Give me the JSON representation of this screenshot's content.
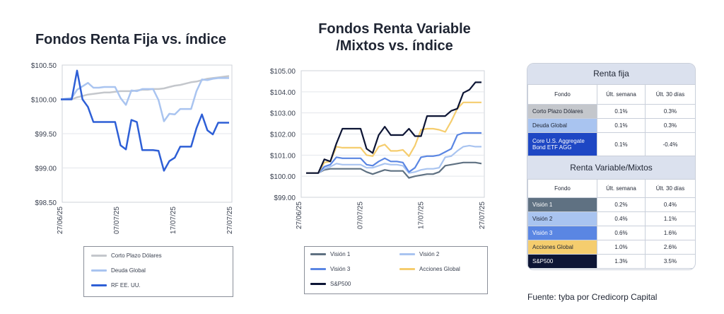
{
  "chart_data": [
    {
      "type": "line",
      "title": "Fondos Renta Fija vs. índice",
      "x_ticks": [
        "27/06/25",
        "07/07/25",
        "17/07/25",
        "27/07/25"
      ],
      "y_ticks": [
        "$100.50",
        "$100.00",
        "$99.50",
        "$99.00",
        "$98.50"
      ],
      "ylim": [
        98.5,
        100.5
      ],
      "series": [
        {
          "name": "Corto Plazo Dólares",
          "color": "#c4c7cc",
          "values": [
            100.0,
            100.0,
            100.0,
            100.03,
            100.05,
            100.07,
            100.08,
            100.09,
            100.1,
            100.1,
            100.11,
            100.12,
            100.12,
            100.12,
            100.13,
            100.14,
            100.14,
            100.15,
            100.15,
            100.16,
            100.18,
            100.2,
            100.21,
            100.23,
            100.25,
            100.26,
            100.28,
            100.3,
            100.31,
            100.32,
            100.33,
            100.34
          ]
        },
        {
          "name": "Deuda Global",
          "color": "#a9c4f0",
          "values": [
            100.0,
            100.01,
            100.02,
            100.14,
            100.19,
            100.24,
            100.17,
            100.17,
            100.18,
            100.18,
            100.18,
            100.02,
            99.92,
            100.13,
            100.12,
            100.15,
            100.15,
            100.15,
            99.99,
            99.68,
            99.79,
            99.78,
            99.86,
            99.86,
            99.86,
            100.12,
            100.29,
            100.28,
            100.3,
            100.31,
            100.31,
            100.31
          ]
        },
        {
          "name": "RF EE. UU.",
          "color": "#2e5fd6",
          "values": [
            100.0,
            100.0,
            100.0,
            100.42,
            100.0,
            99.89,
            99.67,
            99.67,
            99.67,
            99.67,
            99.67,
            99.33,
            99.27,
            99.7,
            99.67,
            99.26,
            99.26,
            99.26,
            99.25,
            98.96,
            99.1,
            99.15,
            99.31,
            99.31,
            99.31,
            99.58,
            99.78,
            99.55,
            99.49,
            99.66,
            99.66,
            99.66
          ]
        }
      ]
    },
    {
      "type": "line",
      "title": [
        "Fondos Renta Variable",
        "/Mixtos vs. índice"
      ],
      "x_ticks": [
        "27/06/25",
        "07/07/25",
        "17/07/25",
        "27/07/25"
      ],
      "y_ticks": [
        "$105.00",
        "$104.00",
        "$103.00",
        "$102.00",
        "$101.00",
        "$100.00",
        "$99.00"
      ],
      "ylim": [
        99.0,
        105.0
      ],
      "series": [
        {
          "name": "Visión 1",
          "color": "#5f7182",
          "values": [
            100.15,
            100.15,
            100.15,
            100.3,
            100.35,
            100.35,
            100.35,
            100.35,
            100.35,
            100.35,
            100.2,
            100.1,
            100.2,
            100.3,
            100.25,
            100.25,
            100.25,
            99.92,
            100.0,
            100.05,
            100.1,
            100.1,
            100.2,
            100.5,
            100.55,
            100.6,
            100.65,
            100.65,
            100.65,
            100.6
          ]
        },
        {
          "name": "Visión 2",
          "color": "#a9c4f0",
          "values": [
            100.15,
            100.15,
            100.15,
            100.35,
            100.45,
            100.6,
            100.55,
            100.55,
            100.55,
            100.55,
            100.4,
            100.4,
            100.5,
            100.6,
            100.55,
            100.55,
            100.5,
            100.15,
            100.2,
            100.3,
            100.35,
            100.35,
            100.4,
            100.9,
            100.95,
            101.2,
            101.4,
            101.45,
            101.4,
            101.4
          ]
        },
        {
          "name": "Visión 3",
          "color": "#5a86e3",
          "values": [
            100.15,
            100.15,
            100.15,
            100.45,
            100.55,
            100.9,
            100.85,
            100.85,
            100.85,
            100.85,
            100.55,
            100.5,
            100.7,
            100.85,
            100.7,
            100.7,
            100.65,
            100.2,
            100.4,
            100.9,
            100.95,
            100.95,
            101.0,
            101.15,
            101.3,
            101.95,
            102.05,
            102.05,
            102.05,
            102.05
          ]
        },
        {
          "name": "Acciones Global",
          "color": "#f5cd6e",
          "values": [
            100.15,
            100.15,
            100.15,
            100.65,
            100.7,
            101.4,
            101.35,
            101.35,
            101.35,
            101.35,
            101.0,
            100.95,
            101.4,
            101.5,
            101.2,
            101.2,
            101.25,
            100.95,
            101.45,
            102.2,
            102.25,
            102.25,
            102.2,
            102.1,
            102.6,
            103.2,
            103.5,
            103.5,
            103.5,
            103.5
          ]
        },
        {
          "name": "S&P500",
          "color": "#0d1535",
          "values": [
            100.15,
            100.15,
            100.15,
            100.8,
            100.7,
            101.55,
            102.25,
            102.25,
            102.25,
            102.25,
            101.3,
            101.1,
            101.95,
            102.35,
            101.95,
            101.95,
            101.95,
            102.25,
            101.9,
            101.9,
            102.85,
            102.85,
            102.85,
            102.85,
            103.1,
            103.2,
            103.95,
            104.1,
            104.45,
            104.45
          ]
        }
      ]
    }
  ],
  "table": {
    "fixed_title": "Renta fija",
    "variable_title": "Renta Variable/Mixtos",
    "col_fondo": "Fondo",
    "col_week": "Últ. semana",
    "col_30": "Últ. 30 días",
    "fixed_rows": [
      {
        "name": "Corto Plazo Dólares",
        "week": "0.1%",
        "d30": "0.3%",
        "bg": "#c4c7cc",
        "fg": "#1f2533"
      },
      {
        "name": "Deuda Global",
        "week": "0.1%",
        "d30": "0.3%",
        "bg": "#a9c4f0",
        "fg": "#1f2533"
      },
      {
        "name": "Core U.S. Aggregate Bond ETF AGG",
        "week": "0.1%",
        "d30": "-0.4%",
        "bg": "#1e47c4",
        "fg": "#ffffff"
      }
    ],
    "variable_rows": [
      {
        "name": "Visión 1",
        "week": "0.2%",
        "d30": "0.4%",
        "bg": "#5f7182",
        "fg": "#ffffff"
      },
      {
        "name": "Visión 2",
        "week": "0.4%",
        "d30": "1.1%",
        "bg": "#a9c4f0",
        "fg": "#1f2533"
      },
      {
        "name": "Visión 3",
        "week": "0.6%",
        "d30": "1.6%",
        "bg": "#5a86e3",
        "fg": "#ffffff"
      },
      {
        "name": "Acciones Global",
        "week": "1.0%",
        "d30": "2.6%",
        "bg": "#f5cd6e",
        "fg": "#1f2533"
      },
      {
        "name": "S&P500",
        "week": "1.3%",
        "d30": "3.5%",
        "bg": "#0d1535",
        "fg": "#ffffff"
      }
    ]
  },
  "source_note": "Fuente: tyba por Credicorp Capital"
}
